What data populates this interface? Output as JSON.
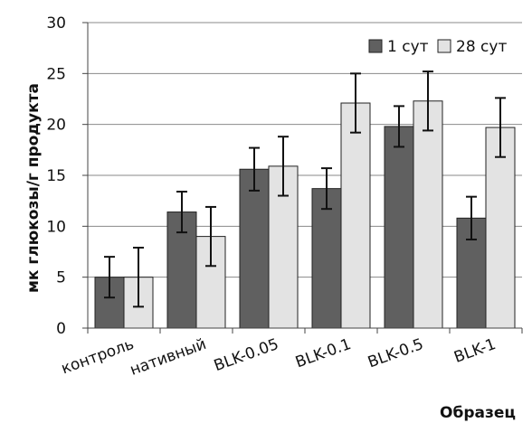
{
  "chart_data": {
    "type": "bar",
    "title": "",
    "xlabel": "Образец",
    "ylabel": "мк глюкозы/г продукта",
    "categories": [
      "контроль",
      "нативный",
      "BLK-0.05",
      "BLK-0.1",
      "BLK-0.5",
      "BLK-1"
    ],
    "ylim": [
      0,
      30
    ],
    "yticks": [
      "0",
      "5",
      "10",
      "15",
      "20",
      "25",
      "30"
    ],
    "grid": "horizontal",
    "legend_position": "top-right",
    "series": [
      {
        "name": "1 сут",
        "color": "#606060",
        "values": [
          5.0,
          11.4,
          15.6,
          13.7,
          19.8,
          10.8
        ],
        "errors": [
          2.0,
          2.0,
          2.1,
          2.0,
          2.0,
          2.1
        ]
      },
      {
        "name": "28 сут",
        "color": "#e3e3e3",
        "values": [
          5.0,
          9.0,
          15.9,
          22.1,
          22.3,
          19.7
        ],
        "errors": [
          2.9,
          2.9,
          2.9,
          2.9,
          2.9,
          2.9
        ]
      }
    ]
  }
}
